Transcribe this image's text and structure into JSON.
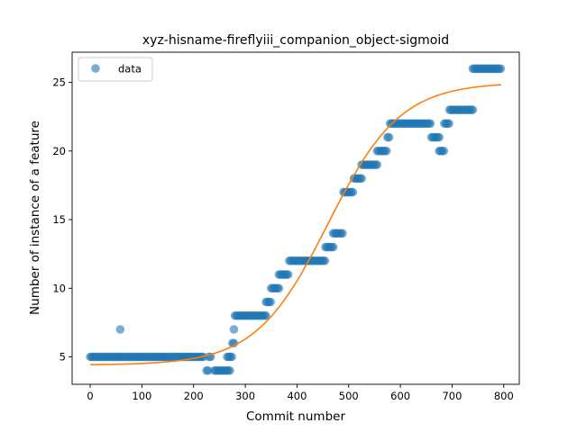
{
  "chart_data": {
    "type": "scatter",
    "title": "xyz-hisname-fireflyiii_companion_object-sigmoid",
    "xlabel": "Commit number",
    "ylabel": "Number of instance of a feature",
    "xlim": [
      -35,
      830
    ],
    "ylim": [
      3.0,
      27.2
    ],
    "xticks": [
      0,
      100,
      200,
      300,
      400,
      500,
      600,
      700,
      800
    ],
    "yticks": [
      5,
      10,
      15,
      20,
      25
    ],
    "grid": false,
    "legend": {
      "position": "top-left",
      "entries": [
        {
          "label": "data",
          "color": "#1f77b4",
          "marker": "circle"
        }
      ]
    },
    "series": [
      {
        "name": "data",
        "kind": "scatter",
        "color": "#1f77b4",
        "segments": [
          {
            "x_start": 0,
            "x_end": 220,
            "y": 5
          },
          {
            "x_start": 225,
            "x_end": 228,
            "y": 4
          },
          {
            "x_start": 230,
            "x_end": 235,
            "y": 5
          },
          {
            "x_start": 240,
            "x_end": 270,
            "y": 4
          },
          {
            "x_start": 265,
            "x_end": 275,
            "y": 5
          },
          {
            "x_start": 275,
            "x_end": 280,
            "y": 6
          },
          {
            "x_start": 280,
            "x_end": 340,
            "y": 8
          },
          {
            "x_start": 340,
            "x_end": 350,
            "y": 9
          },
          {
            "x_start": 350,
            "x_end": 365,
            "y": 10
          },
          {
            "x_start": 365,
            "x_end": 385,
            "y": 11
          },
          {
            "x_start": 385,
            "x_end": 455,
            "y": 12
          },
          {
            "x_start": 455,
            "x_end": 470,
            "y": 13
          },
          {
            "x_start": 470,
            "x_end": 490,
            "y": 14
          },
          {
            "x_start": 490,
            "x_end": 510,
            "y": 17
          },
          {
            "x_start": 510,
            "x_end": 525,
            "y": 18
          },
          {
            "x_start": 525,
            "x_end": 555,
            "y": 19
          },
          {
            "x_start": 555,
            "x_end": 575,
            "y": 20
          },
          {
            "x_start": 575,
            "x_end": 580,
            "y": 21
          },
          {
            "x_start": 580,
            "x_end": 660,
            "y": 22
          },
          {
            "x_start": 660,
            "x_end": 675,
            "y": 21
          },
          {
            "x_start": 675,
            "x_end": 685,
            "y": 20
          },
          {
            "x_start": 685,
            "x_end": 695,
            "y": 22
          },
          {
            "x_start": 695,
            "x_end": 740,
            "y": 23
          },
          {
            "x_start": 740,
            "x_end": 795,
            "y": 26
          }
        ],
        "points": [
          {
            "x": 58,
            "y": 7
          },
          {
            "x": 278,
            "y": 7
          }
        ]
      },
      {
        "kind": "line",
        "color": "#ff7f0e",
        "model": "sigmoid",
        "x_range": [
          0,
          795
        ],
        "params": {
          "lower": 4.4,
          "upper": 25.0,
          "midpoint": 460,
          "scale": 70
        }
      }
    ]
  }
}
